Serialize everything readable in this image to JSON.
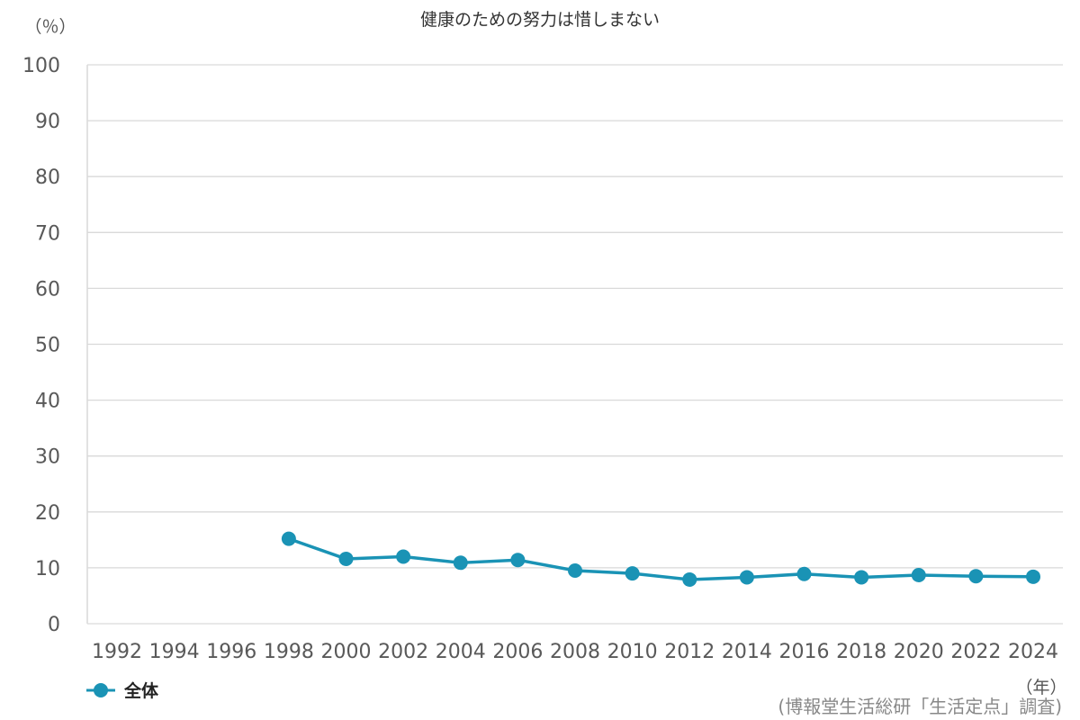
{
  "chart_data": {
    "type": "line",
    "title": "健康のための努力は惜しまない",
    "ylabel": "（％）",
    "xlabel": "（年）",
    "ylim": [
      0,
      100
    ],
    "yticks": [
      0,
      10,
      20,
      30,
      40,
      50,
      60,
      70,
      80,
      90,
      100
    ],
    "categories": [
      "1992",
      "1994",
      "1996",
      "1998",
      "2000",
      "2002",
      "2004",
      "2006",
      "2008",
      "2010",
      "2012",
      "2014",
      "2016",
      "2018",
      "2020",
      "2022",
      "2024"
    ],
    "grid": true,
    "legend_position": "bottom-left",
    "series": [
      {
        "name": "全体",
        "color": "#1a93b5",
        "values": [
          null,
          null,
          null,
          15.2,
          11.6,
          12.0,
          10.9,
          11.4,
          9.5,
          9.0,
          7.9,
          8.3,
          8.9,
          8.3,
          8.7,
          8.5,
          8.4
        ]
      }
    ],
    "source": "(博報堂生活総研「生活定点」調査)"
  }
}
